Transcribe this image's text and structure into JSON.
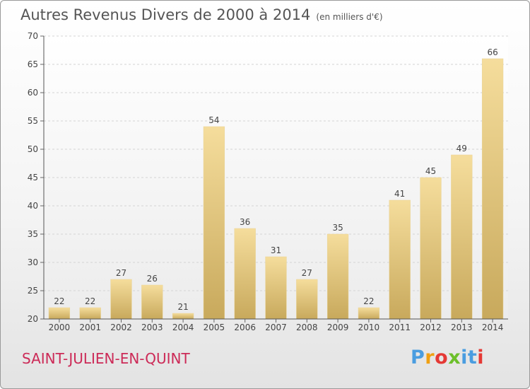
{
  "header": {
    "title": "Autres Revenus Divers de 2000 à 2014",
    "unit": "(en milliers d'€)"
  },
  "footer": {
    "town": "SAINT-JULIEN-EN-QUINT",
    "brand": "Proxiti"
  },
  "colors": {
    "bar_light": "#f5dd9c",
    "bar_dark": "#c8a95c",
    "town": "#cc2a57"
  },
  "chart_data": {
    "type": "bar",
    "title": "Autres Revenus Divers de 2000 à 2014",
    "subtitle": "(en milliers d'€)",
    "xlabel": "",
    "ylabel": "",
    "categories": [
      "2000",
      "2001",
      "2002",
      "2003",
      "2004",
      "2005",
      "2006",
      "2007",
      "2008",
      "2009",
      "2010",
      "2011",
      "2012",
      "2013",
      "2014"
    ],
    "values": [
      22,
      22,
      27,
      26,
      21,
      54,
      36,
      31,
      27,
      35,
      22,
      41,
      45,
      49,
      66
    ],
    "ylim": [
      20,
      70
    ],
    "yticks": [
      20,
      25,
      30,
      35,
      40,
      45,
      50,
      55,
      60,
      65,
      70
    ],
    "grid": true,
    "data_labels": true
  }
}
